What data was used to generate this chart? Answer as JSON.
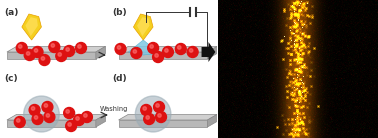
{
  "bg_color": "#ffffff",
  "red_color": "#dd1111",
  "blue_color": "#7ec8e3",
  "yellow1": "#f5d020",
  "yellow2": "#e8a000",
  "gray_circle": "#9aabb5",
  "platform_top": "#d0d0d0",
  "platform_front": "#b8b8b8",
  "platform_right": "#a0a0a0",
  "platform_edge": "#888888",
  "dark": "#111111",
  "label_fontsize": 6.5,
  "wash_fontsize": 4.8,
  "label_a": "(a)",
  "label_b": "(b)",
  "label_c": "(c)",
  "label_d": "(d)",
  "washing_text": "Washing"
}
